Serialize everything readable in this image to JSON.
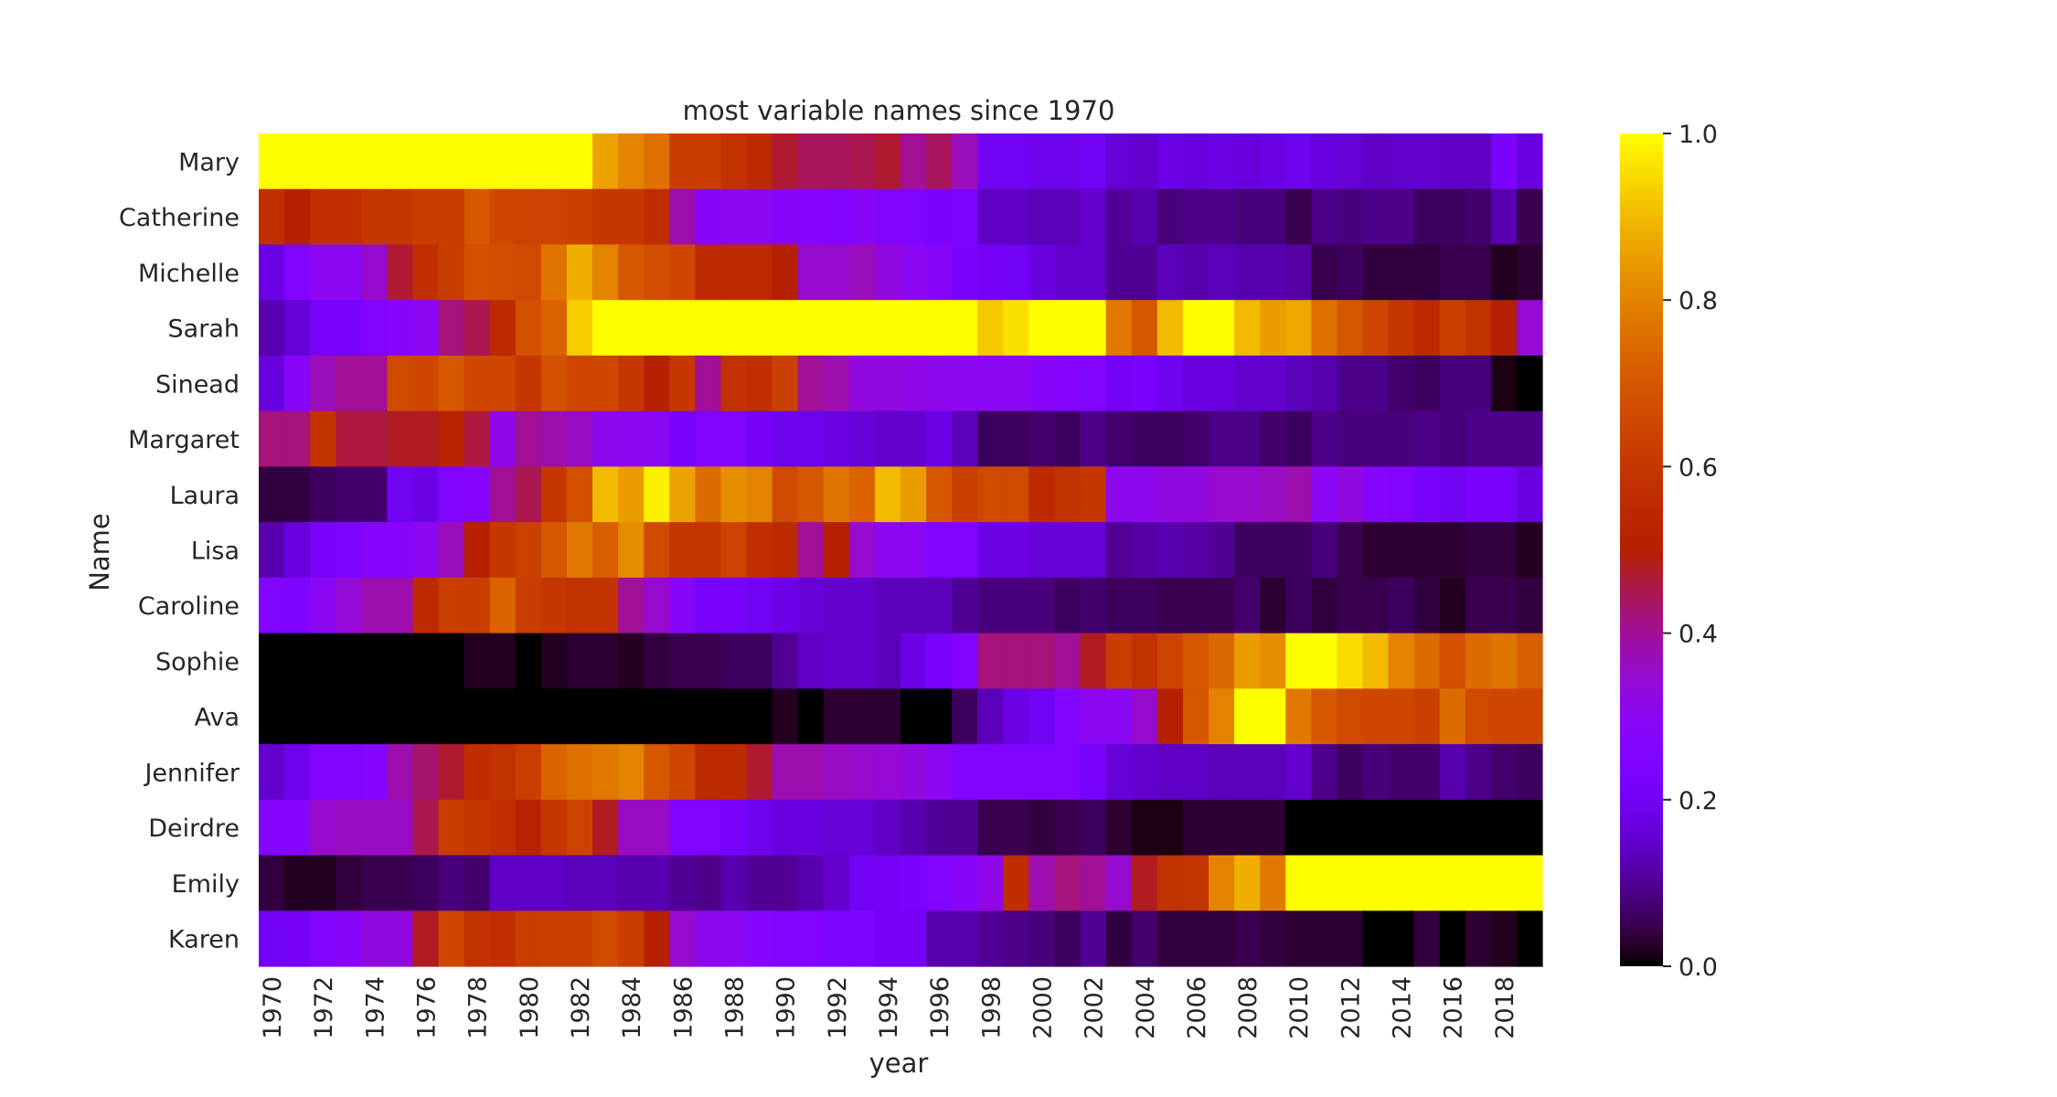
{
  "chart_data": {
    "type": "heatmap",
    "title": "most variable names since 1970",
    "xlabel": "year",
    "ylabel": "Name",
    "colormap": "gnuplot",
    "colorbar": {
      "min": 0.0,
      "max": 1.0,
      "ticks": [
        "0.0",
        "0.2",
        "0.4",
        "0.6",
        "0.8",
        "1.0"
      ]
    },
    "x_tick_labels": [
      "1970",
      "1972",
      "1974",
      "1976",
      "1978",
      "1980",
      "1982",
      "1984",
      "1986",
      "1988",
      "1990",
      "1992",
      "1994",
      "1996",
      "1998",
      "2000",
      "2002",
      "2004",
      "2006",
      "2008",
      "2010",
      "2012",
      "2014",
      "2016",
      "2018"
    ],
    "x": [
      1970,
      1971,
      1972,
      1973,
      1974,
      1975,
      1976,
      1977,
      1978,
      1979,
      1980,
      1981,
      1982,
      1983,
      1984,
      1985,
      1986,
      1987,
      1988,
      1989,
      1990,
      1991,
      1992,
      1993,
      1994,
      1995,
      1996,
      1997,
      1998,
      1999,
      2000,
      2001,
      2002,
      2003,
      2004,
      2005,
      2006,
      2007,
      2008,
      2009,
      2010,
      2011,
      2012,
      2013,
      2014,
      2015,
      2016,
      2017,
      2018,
      2019
    ],
    "rows": [
      "Mary",
      "Catherine",
      "Michelle",
      "Sarah",
      "Sinead",
      "Margaret",
      "Laura",
      "Lisa",
      "Caroline",
      "Sophie",
      "Ava",
      "Jennifer",
      "Deirdre",
      "Emily",
      "Karen"
    ],
    "values": [
      [
        1.0,
        1.0,
        1.0,
        1.0,
        1.0,
        1.0,
        1.0,
        1.0,
        1.0,
        1.0,
        1.0,
        1.0,
        1.0,
        0.86,
        0.8,
        0.76,
        0.62,
        0.62,
        0.58,
        0.55,
        0.47,
        0.44,
        0.44,
        0.45,
        0.47,
        0.4,
        0.44,
        0.37,
        0.2,
        0.2,
        0.19,
        0.19,
        0.2,
        0.16,
        0.15,
        0.18,
        0.17,
        0.18,
        0.17,
        0.18,
        0.19,
        0.17,
        0.16,
        0.14,
        0.15,
        0.15,
        0.14,
        0.14,
        0.23,
        0.17
      ],
      [
        0.57,
        0.5,
        0.57,
        0.57,
        0.6,
        0.6,
        0.62,
        0.62,
        0.7,
        0.65,
        0.64,
        0.64,
        0.63,
        0.6,
        0.6,
        0.56,
        0.38,
        0.28,
        0.3,
        0.3,
        0.28,
        0.27,
        0.26,
        0.28,
        0.26,
        0.25,
        0.23,
        0.24,
        0.14,
        0.14,
        0.13,
        0.13,
        0.15,
        0.1,
        0.12,
        0.08,
        0.09,
        0.09,
        0.08,
        0.08,
        0.05,
        0.09,
        0.08,
        0.09,
        0.09,
        0.06,
        0.06,
        0.07,
        0.12,
        0.05
      ],
      [
        0.18,
        0.25,
        0.3,
        0.3,
        0.35,
        0.47,
        0.57,
        0.62,
        0.68,
        0.67,
        0.66,
        0.77,
        0.88,
        0.8,
        0.7,
        0.67,
        0.65,
        0.55,
        0.55,
        0.55,
        0.5,
        0.35,
        0.35,
        0.37,
        0.33,
        0.3,
        0.28,
        0.23,
        0.21,
        0.2,
        0.17,
        0.15,
        0.15,
        0.1,
        0.1,
        0.13,
        0.12,
        0.13,
        0.12,
        0.12,
        0.11,
        0.05,
        0.06,
        0.04,
        0.04,
        0.04,
        0.05,
        0.05,
        0.02,
        0.03
      ],
      [
        0.12,
        0.16,
        0.22,
        0.22,
        0.26,
        0.27,
        0.3,
        0.42,
        0.45,
        0.55,
        0.68,
        0.73,
        0.93,
        1.0,
        1.0,
        1.0,
        1.0,
        1.0,
        1.0,
        1.0,
        1.0,
        1.0,
        1.0,
        1.0,
        1.0,
        1.0,
        1.0,
        1.0,
        0.92,
        0.96,
        1.0,
        1.0,
        1.0,
        0.78,
        0.7,
        0.9,
        1.0,
        1.0,
        0.9,
        0.85,
        0.87,
        0.76,
        0.7,
        0.65,
        0.6,
        0.55,
        0.63,
        0.58,
        0.5,
        0.34
      ],
      [
        0.17,
        0.28,
        0.37,
        0.4,
        0.4,
        0.66,
        0.65,
        0.7,
        0.65,
        0.65,
        0.6,
        0.68,
        0.65,
        0.65,
        0.6,
        0.5,
        0.6,
        0.4,
        0.58,
        0.57,
        0.63,
        0.4,
        0.38,
        0.33,
        0.33,
        0.32,
        0.31,
        0.3,
        0.3,
        0.3,
        0.28,
        0.27,
        0.25,
        0.21,
        0.23,
        0.19,
        0.17,
        0.17,
        0.15,
        0.15,
        0.13,
        0.12,
        0.09,
        0.09,
        0.07,
        0.06,
        0.08,
        0.08,
        0.01,
        0.0
      ],
      [
        0.42,
        0.42,
        0.58,
        0.46,
        0.46,
        0.48,
        0.48,
        0.52,
        0.46,
        0.32,
        0.4,
        0.38,
        0.36,
        0.31,
        0.3,
        0.3,
        0.22,
        0.25,
        0.25,
        0.21,
        0.19,
        0.19,
        0.18,
        0.16,
        0.15,
        0.15,
        0.18,
        0.13,
        0.06,
        0.06,
        0.07,
        0.06,
        0.09,
        0.07,
        0.06,
        0.06,
        0.07,
        0.09,
        0.09,
        0.07,
        0.06,
        0.09,
        0.08,
        0.08,
        0.08,
        0.09,
        0.08,
        0.09,
        0.09,
        0.09
      ],
      [
        0.04,
        0.04,
        0.06,
        0.07,
        0.07,
        0.2,
        0.18,
        0.25,
        0.27,
        0.4,
        0.45,
        0.6,
        0.68,
        0.9,
        0.85,
        0.98,
        0.86,
        0.75,
        0.82,
        0.8,
        0.66,
        0.7,
        0.77,
        0.73,
        0.9,
        0.85,
        0.7,
        0.63,
        0.66,
        0.66,
        0.55,
        0.58,
        0.6,
        0.31,
        0.31,
        0.33,
        0.33,
        0.35,
        0.35,
        0.36,
        0.38,
        0.3,
        0.33,
        0.27,
        0.26,
        0.22,
        0.2,
        0.22,
        0.22,
        0.17
      ],
      [
        0.12,
        0.17,
        0.22,
        0.24,
        0.27,
        0.27,
        0.3,
        0.37,
        0.5,
        0.6,
        0.63,
        0.7,
        0.78,
        0.72,
        0.82,
        0.66,
        0.6,
        0.6,
        0.64,
        0.57,
        0.55,
        0.4,
        0.5,
        0.35,
        0.3,
        0.3,
        0.25,
        0.25,
        0.18,
        0.18,
        0.16,
        0.16,
        0.16,
        0.1,
        0.11,
        0.12,
        0.11,
        0.1,
        0.06,
        0.06,
        0.06,
        0.08,
        0.05,
        0.03,
        0.03,
        0.03,
        0.03,
        0.04,
        0.04,
        0.02
      ],
      [
        0.25,
        0.24,
        0.3,
        0.34,
        0.38,
        0.38,
        0.55,
        0.62,
        0.62,
        0.73,
        0.62,
        0.6,
        0.58,
        0.58,
        0.4,
        0.35,
        0.28,
        0.22,
        0.22,
        0.2,
        0.18,
        0.16,
        0.15,
        0.15,
        0.13,
        0.13,
        0.13,
        0.1,
        0.08,
        0.08,
        0.08,
        0.06,
        0.07,
        0.06,
        0.06,
        0.05,
        0.05,
        0.05,
        0.07,
        0.03,
        0.06,
        0.04,
        0.05,
        0.05,
        0.06,
        0.04,
        0.02,
        0.05,
        0.05,
        0.04
      ],
      [
        0.0,
        0.0,
        0.0,
        0.0,
        0.0,
        0.0,
        0.0,
        0.0,
        0.02,
        0.02,
        0.0,
        0.02,
        0.03,
        0.03,
        0.02,
        0.04,
        0.05,
        0.05,
        0.06,
        0.06,
        0.1,
        0.14,
        0.15,
        0.15,
        0.13,
        0.18,
        0.23,
        0.26,
        0.42,
        0.42,
        0.42,
        0.4,
        0.48,
        0.62,
        0.58,
        0.64,
        0.7,
        0.74,
        0.85,
        0.82,
        1.0,
        1.0,
        0.95,
        0.9,
        0.8,
        0.75,
        0.68,
        0.75,
        0.77,
        0.72
      ],
      [
        0.0,
        0.0,
        0.0,
        0.0,
        0.0,
        0.0,
        0.0,
        0.0,
        0.0,
        0.0,
        0.0,
        0.0,
        0.0,
        0.0,
        0.0,
        0.0,
        0.0,
        0.0,
        0.0,
        0.0,
        0.02,
        0.0,
        0.03,
        0.03,
        0.03,
        0.0,
        0.0,
        0.06,
        0.13,
        0.18,
        0.2,
        0.25,
        0.3,
        0.3,
        0.35,
        0.5,
        0.7,
        0.8,
        1.0,
        1.0,
        0.78,
        0.7,
        0.66,
        0.65,
        0.65,
        0.63,
        0.75,
        0.66,
        0.65,
        0.65
      ],
      [
        0.15,
        0.19,
        0.25,
        0.25,
        0.27,
        0.38,
        0.43,
        0.47,
        0.56,
        0.58,
        0.62,
        0.73,
        0.76,
        0.78,
        0.8,
        0.7,
        0.65,
        0.55,
        0.55,
        0.47,
        0.38,
        0.38,
        0.36,
        0.35,
        0.34,
        0.33,
        0.3,
        0.25,
        0.25,
        0.25,
        0.25,
        0.25,
        0.22,
        0.16,
        0.15,
        0.14,
        0.14,
        0.13,
        0.13,
        0.13,
        0.15,
        0.09,
        0.06,
        0.08,
        0.07,
        0.07,
        0.12,
        0.09,
        0.07,
        0.06
      ],
      [
        0.27,
        0.27,
        0.35,
        0.36,
        0.36,
        0.36,
        0.45,
        0.62,
        0.6,
        0.57,
        0.52,
        0.6,
        0.64,
        0.48,
        0.36,
        0.36,
        0.25,
        0.25,
        0.22,
        0.19,
        0.17,
        0.17,
        0.16,
        0.16,
        0.14,
        0.12,
        0.1,
        0.1,
        0.05,
        0.05,
        0.04,
        0.05,
        0.06,
        0.03,
        0.01,
        0.01,
        0.03,
        0.03,
        0.03,
        0.03,
        0.0,
        0.0,
        0.0,
        0.0,
        0.0,
        0.0,
        0.0,
        0.0,
        0.0,
        0.0
      ],
      [
        0.04,
        0.02,
        0.02,
        0.04,
        0.05,
        0.05,
        0.06,
        0.08,
        0.07,
        0.14,
        0.14,
        0.14,
        0.13,
        0.13,
        0.12,
        0.12,
        0.1,
        0.09,
        0.12,
        0.1,
        0.1,
        0.12,
        0.15,
        0.2,
        0.21,
        0.23,
        0.25,
        0.28,
        0.32,
        0.56,
        0.38,
        0.42,
        0.4,
        0.35,
        0.48,
        0.58,
        0.59,
        0.8,
        0.88,
        0.78,
        1.0,
        1.0,
        1.0,
        1.0,
        1.0,
        1.0,
        1.0,
        1.0,
        1.0,
        1.0
      ],
      [
        0.2,
        0.21,
        0.26,
        0.28,
        0.33,
        0.33,
        0.48,
        0.65,
        0.58,
        0.57,
        0.62,
        0.63,
        0.63,
        0.66,
        0.62,
        0.5,
        0.35,
        0.31,
        0.3,
        0.27,
        0.25,
        0.25,
        0.24,
        0.24,
        0.21,
        0.21,
        0.12,
        0.12,
        0.1,
        0.09,
        0.08,
        0.06,
        0.1,
        0.04,
        0.07,
        0.04,
        0.04,
        0.04,
        0.05,
        0.04,
        0.03,
        0.03,
        0.03,
        0.0,
        0.0,
        0.04,
        0.0,
        0.03,
        0.02,
        0.0
      ]
    ]
  }
}
